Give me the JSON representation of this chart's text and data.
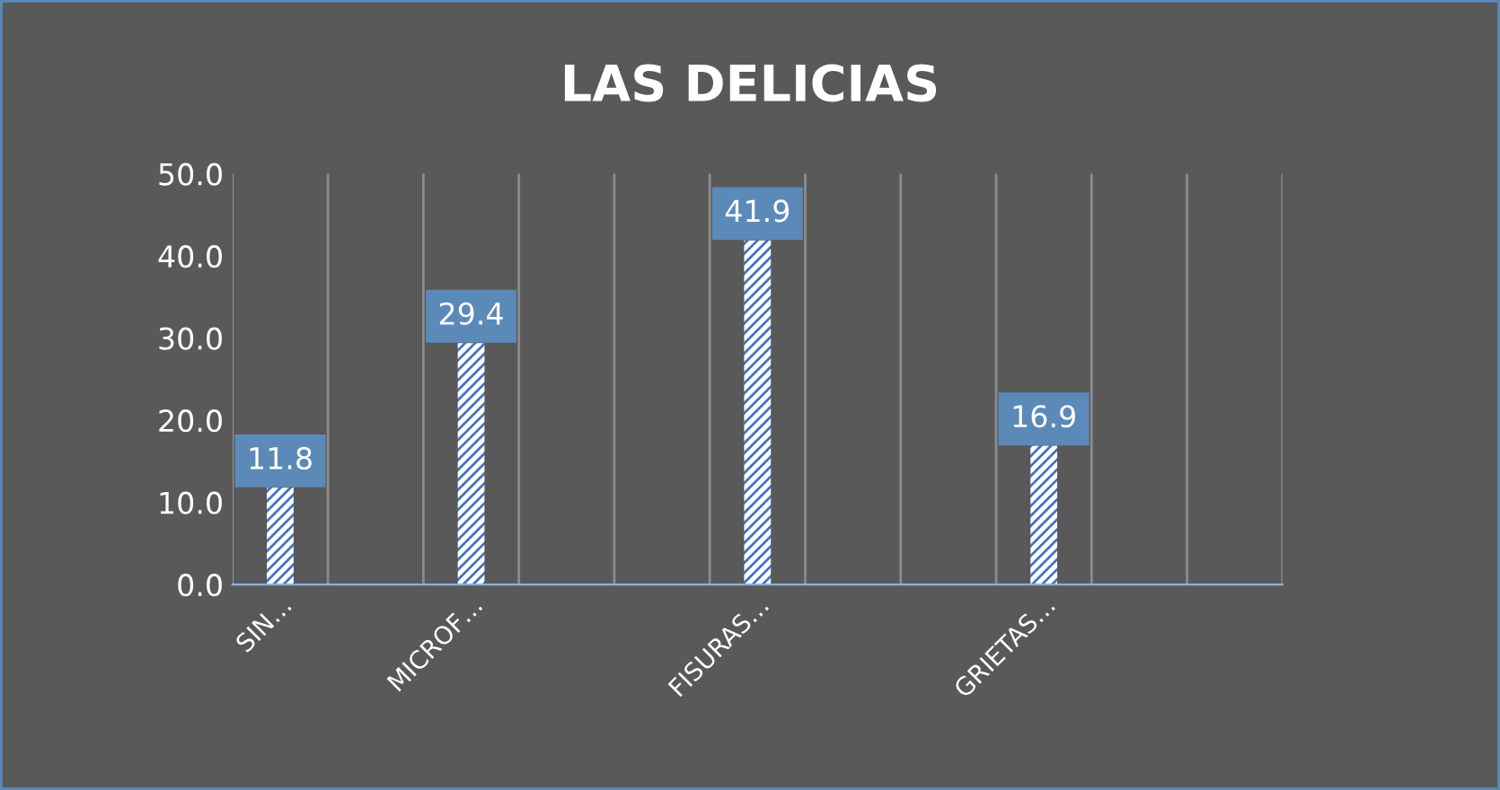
{
  "chart_data": {
    "type": "bar",
    "title": "LAS DELICIAS",
    "categories": [
      "SIN…",
      null,
      "MICROF…",
      null,
      null,
      "FISURAS…",
      null,
      null,
      "GRIETAS…",
      null,
      null
    ],
    "values": [
      11.8,
      null,
      29.4,
      null,
      null,
      41.9,
      null,
      null,
      16.9,
      null,
      null
    ],
    "color": "#4472c4",
    "ylim": [
      0,
      50
    ],
    "yticks": [
      {
        "value": 0,
        "label": "0.0"
      },
      {
        "value": 10,
        "label": "10.0"
      },
      {
        "value": 20,
        "label": "20.0"
      },
      {
        "value": 30,
        "label": "30.0"
      },
      {
        "value": 40,
        "label": "40.0"
      },
      {
        "value": 50,
        "label": "50.0"
      }
    ],
    "grid": "x",
    "data_labels": true
  }
}
